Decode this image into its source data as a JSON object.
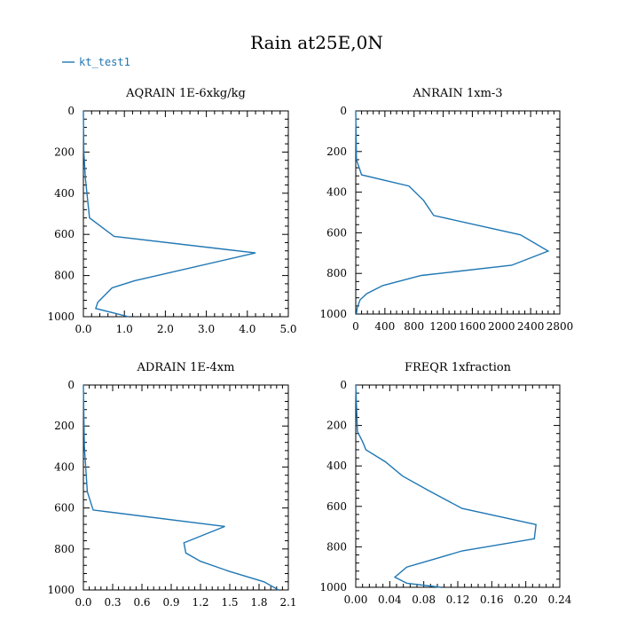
{
  "figure": {
    "title": "Rain at25E,0N",
    "legend": {
      "label": "kt_test1",
      "color": "#1f77b4"
    }
  },
  "chart_data": [
    {
      "type": "line",
      "title": "AQRAIN  1E-6xkg/kg",
      "xlabel": "",
      "ylabel": "",
      "xlim": [
        0,
        5
      ],
      "ylim": [
        1000,
        0
      ],
      "xticks": [
        0,
        1,
        2,
        3,
        4,
        5
      ],
      "xtick_labels": [
        "0.0",
        "1.0",
        "2.0",
        "3.0",
        "4.0",
        "5.0"
      ],
      "yticks": [
        0,
        200,
        400,
        600,
        800,
        1000
      ],
      "ytick_labels": [
        "0",
        "200",
        "400",
        "600",
        "800",
        "1000"
      ],
      "series": [
        {
          "name": "kt_test1",
          "color": "#1f77b4",
          "x": [
            0,
            0.01,
            0.05,
            0.15,
            0.75,
            4.2,
            1.25,
            0.7,
            0.35,
            0.3,
            1.1
          ],
          "y": [
            0,
            200,
            330,
            520,
            610,
            690,
            825,
            860,
            930,
            960,
            1000
          ]
        }
      ]
    },
    {
      "type": "line",
      "title": "ANRAIN  1xm-3",
      "xlabel": "",
      "ylabel": "",
      "xlim": [
        0,
        2800
      ],
      "ylim": [
        1000,
        0
      ],
      "xticks": [
        0,
        400,
        800,
        1200,
        1600,
        2000,
        2400,
        2800
      ],
      "xtick_labels": [
        "0",
        "400",
        "800",
        "1200",
        "1600",
        "2000",
        "2400",
        "2800"
      ],
      "yticks": [
        0,
        200,
        400,
        600,
        800,
        1000
      ],
      "ytick_labels": [
        "0",
        "200",
        "400",
        "600",
        "800",
        "1000"
      ],
      "series": [
        {
          "name": "kt_test1",
          "color": "#1f77b4",
          "x": [
            0,
            10,
            80,
            730,
            930,
            1070,
            2260,
            2640,
            2140,
            900,
            370,
            150,
            60,
            20,
            10
          ],
          "y": [
            0,
            240,
            315,
            370,
            440,
            515,
            610,
            690,
            760,
            810,
            860,
            900,
            930,
            970,
            1000
          ]
        }
      ]
    },
    {
      "type": "line",
      "title": "ADRAIN  1E-4xm",
      "xlabel": "",
      "ylabel": "",
      "xlim": [
        0,
        2.1
      ],
      "ylim": [
        1000,
        0
      ],
      "xticks": [
        0,
        0.3,
        0.6,
        0.9,
        1.2,
        1.5,
        1.8,
        2.1
      ],
      "xtick_labels": [
        "0.0",
        "0.3",
        "0.6",
        "0.9",
        "1.2",
        "1.5",
        "1.8",
        "2.1"
      ],
      "yticks": [
        0,
        200,
        400,
        600,
        800,
        1000
      ],
      "ytick_labels": [
        "0",
        "200",
        "400",
        "600",
        "800",
        "1000"
      ],
      "series": [
        {
          "name": "kt_test1",
          "color": "#1f77b4",
          "x": [
            0,
            0.01,
            0.04,
            0.1,
            1.45,
            1.03,
            1.05,
            1.2,
            1.5,
            1.85,
            2.0
          ],
          "y": [
            0,
            300,
            520,
            610,
            690,
            770,
            820,
            860,
            910,
            960,
            1000
          ]
        }
      ]
    },
    {
      "type": "line",
      "title": "FREQR  1xfraction",
      "xlabel": "",
      "ylabel": "",
      "xlim": [
        0,
        0.24
      ],
      "ylim": [
        1000,
        0
      ],
      "xticks": [
        0,
        0.04,
        0.08,
        0.12,
        0.16,
        0.2,
        0.24
      ],
      "xtick_labels": [
        "0.00",
        "0.04",
        "0.08",
        "0.12",
        "0.16",
        "0.20",
        "0.24"
      ],
      "yticks": [
        0,
        200,
        400,
        600,
        800,
        1000
      ],
      "ytick_labels": [
        "0",
        "200",
        "400",
        "600",
        "800",
        "1000"
      ],
      "series": [
        {
          "name": "kt_test1",
          "color": "#1f77b4",
          "x": [
            0,
            0.002,
            0.008,
            0.012,
            0.035,
            0.055,
            0.085,
            0.125,
            0.212,
            0.21,
            0.125,
            0.093,
            0.06,
            0.046,
            0.06,
            0.1
          ],
          "y": [
            0,
            230,
            280,
            320,
            380,
            450,
            520,
            610,
            690,
            760,
            820,
            860,
            900,
            950,
            980,
            1000
          ]
        }
      ]
    }
  ]
}
